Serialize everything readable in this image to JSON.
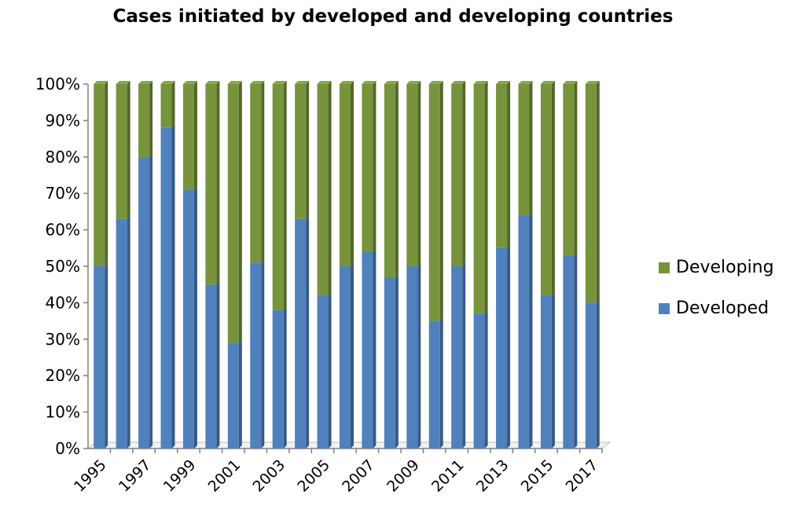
{
  "chart_data": {
    "type": "bar",
    "stacked": true,
    "title": "Cases initiated by developed and developing countries",
    "categories": [
      "1995",
      "1996",
      "1997",
      "1998",
      "1999",
      "2000",
      "2001",
      "2002",
      "2003",
      "2004",
      "2005",
      "2006",
      "2007",
      "2008",
      "2009",
      "2010",
      "2011",
      "2012",
      "2013",
      "2014",
      "2015",
      "2016",
      "2017"
    ],
    "x_tick_labels": [
      "1995",
      "1997",
      "1999",
      "2001",
      "2003",
      "2005",
      "2007",
      "2009",
      "2011",
      "2013",
      "2015",
      "2017"
    ],
    "y_tick_labels": [
      "0%",
      "10%",
      "20%",
      "30%",
      "40%",
      "50%",
      "60%",
      "70%",
      "80%",
      "90%",
      "100%"
    ],
    "ylim": [
      0,
      100
    ],
    "series": [
      {
        "name": "Developed",
        "color": "#4f81bd",
        "values": [
          50,
          63,
          80,
          88,
          71,
          45,
          29,
          51,
          38,
          63,
          42,
          50,
          54,
          47,
          50,
          35,
          50,
          37,
          55,
          64,
          42,
          53,
          40
        ]
      },
      {
        "name": "Developing",
        "color": "#77933c",
        "values": [
          50,
          37,
          20,
          12,
          29,
          55,
          71,
          49,
          62,
          37,
          58,
          50,
          46,
          53,
          50,
          65,
          50,
          63,
          45,
          36,
          58,
          47,
          60
        ]
      }
    ],
    "legend_position": "right",
    "legend_order": [
      "Developing",
      "Developed"
    ],
    "grid": false
  }
}
